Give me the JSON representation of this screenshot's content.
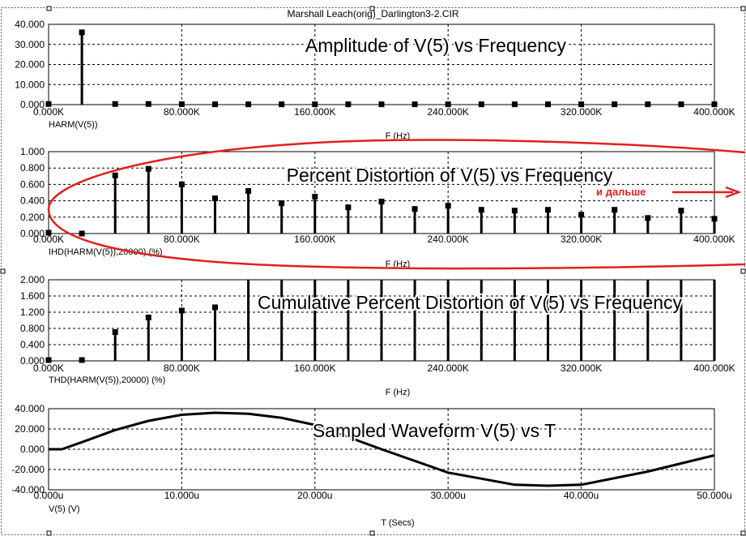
{
  "file_title": "Marshall Leach(orig)_Darlington3-2.CIR",
  "annotation_more": "и дальше",
  "colors": {
    "annotation": "#e02020",
    "trace": "#000000",
    "grid": "#000000"
  },
  "chart_data": [
    {
      "type": "bar",
      "title": "Amplitude of V(5) vs Frequency",
      "xlabel": "F (Hz)",
      "ylabel": "HARM(V(5))",
      "xlim": [
        0,
        400000
      ],
      "ylim": [
        0,
        40
      ],
      "xticks": [
        0,
        80000,
        160000,
        240000,
        320000,
        400000
      ],
      "xticklabels": [
        "0.000K",
        "80.000K",
        "160.000K",
        "240.000K",
        "320.000K",
        "400.000K"
      ],
      "yticks": [
        0,
        10,
        20,
        30,
        40
      ],
      "yticklabels": [
        "0.000",
        "10.000",
        "20.000",
        "30.000",
        "40.000"
      ],
      "x": [
        0,
        20000,
        40000,
        60000,
        80000,
        100000,
        120000,
        140000,
        160000,
        180000,
        200000,
        220000,
        240000,
        260000,
        280000,
        300000,
        320000,
        340000,
        360000,
        380000,
        400000
      ],
      "values": [
        0.3,
        36.0,
        0.3,
        0.3,
        0.2,
        0.15,
        0.15,
        0.15,
        0.15,
        0.15,
        0.15,
        0.15,
        0.15,
        0.15,
        0.15,
        0.15,
        0.15,
        0.15,
        0.15,
        0.15,
        0.15
      ],
      "grid": true
    },
    {
      "type": "bar",
      "title": "Percent Distortion of V(5) vs Frequency",
      "xlabel": "F (Hz)",
      "ylabel": "IHD(HARM(V(5)),20000) (%)",
      "xlim": [
        0,
        400000
      ],
      "ylim": [
        0,
        1
      ],
      "xticks": [
        0,
        80000,
        160000,
        240000,
        320000,
        400000
      ],
      "xticklabels": [
        "0.000K",
        "80.000K",
        "160.000K",
        "240.000K",
        "320.000K",
        "400.000K"
      ],
      "yticks": [
        0,
        0.2,
        0.4,
        0.6,
        0.8,
        1.0
      ],
      "yticklabels": [
        "0.000",
        "0.200",
        "0.400",
        "0.600",
        "0.800",
        "1.000"
      ],
      "x": [
        0,
        20000,
        40000,
        60000,
        80000,
        100000,
        120000,
        140000,
        160000,
        180000,
        200000,
        220000,
        240000,
        260000,
        280000,
        300000,
        320000,
        340000,
        360000,
        380000,
        400000
      ],
      "values": [
        0.01,
        0.0,
        0.71,
        0.79,
        0.6,
        0.43,
        0.52,
        0.37,
        0.45,
        0.32,
        0.39,
        0.3,
        0.34,
        0.29,
        0.28,
        0.29,
        0.23,
        0.29,
        0.19,
        0.28,
        0.18
      ],
      "grid": true
    },
    {
      "type": "bar",
      "title": "Cumulative Percent Distortion of V(5) vs Frequency",
      "xlabel": "F (Hz)",
      "ylabel": "THD(HARM(V(5)),20000) (%)",
      "xlim": [
        0,
        400000
      ],
      "ylim": [
        0,
        2
      ],
      "xticks": [
        0,
        80000,
        160000,
        240000,
        320000,
        400000
      ],
      "xticklabels": [
        "0.000K",
        "80.000K",
        "160.000K",
        "240.000K",
        "320.000K",
        "400.000K"
      ],
      "yticks": [
        0,
        0.4,
        0.8,
        1.2,
        1.6,
        2.0
      ],
      "yticklabels": [
        "0.000",
        "0.400",
        "0.800",
        "1.200",
        "1.600",
        "2.000"
      ],
      "x": [
        0,
        20000,
        40000,
        60000,
        80000,
        100000,
        120000,
        140000,
        160000,
        180000,
        200000,
        220000,
        240000,
        260000,
        280000,
        300000,
        320000,
        340000,
        360000,
        380000,
        400000
      ],
      "values": [
        0.02,
        0.02,
        0.71,
        1.07,
        1.24,
        1.32,
        2.0,
        2.0,
        2.0,
        2.0,
        2.0,
        2.0,
        2.0,
        2.0,
        2.0,
        2.0,
        2.0,
        2.0,
        2.0,
        2.0,
        2.0
      ],
      "grid": true
    },
    {
      "type": "line",
      "title": "Sampled Waveform  V(5) vs T",
      "xlabel": "T (Secs)",
      "ylabel": "V(5) (V)",
      "xlim": [
        0,
        5e-05
      ],
      "ylim": [
        -40,
        40
      ],
      "xticks": [
        0,
        1e-05,
        2e-05,
        3e-05,
        4e-05,
        5e-05
      ],
      "xticklabels": [
        "0.000u",
        "10.000u",
        "20.000u",
        "30.000u",
        "40.000u",
        "50.000u"
      ],
      "yticks": [
        -40,
        -20,
        0,
        20,
        40
      ],
      "yticklabels": [
        "-40.000",
        "-20.000",
        "0.000",
        "20.000",
        "40.000"
      ],
      "x": [
        0,
        1e-06,
        2.5e-06,
        5e-06,
        7.5e-06,
        1e-05,
        1.25e-05,
        1.5e-05,
        1.75e-05,
        2e-05,
        2.5e-05,
        3e-05,
        3.5e-05,
        3.75e-05,
        4e-05,
        4.5e-05,
        5e-05
      ],
      "y": [
        0,
        0,
        7,
        19,
        28,
        34,
        36,
        35,
        31,
        24,
        0,
        -23,
        -35,
        -36,
        -35,
        -22,
        -6
      ],
      "grid": true
    }
  ]
}
